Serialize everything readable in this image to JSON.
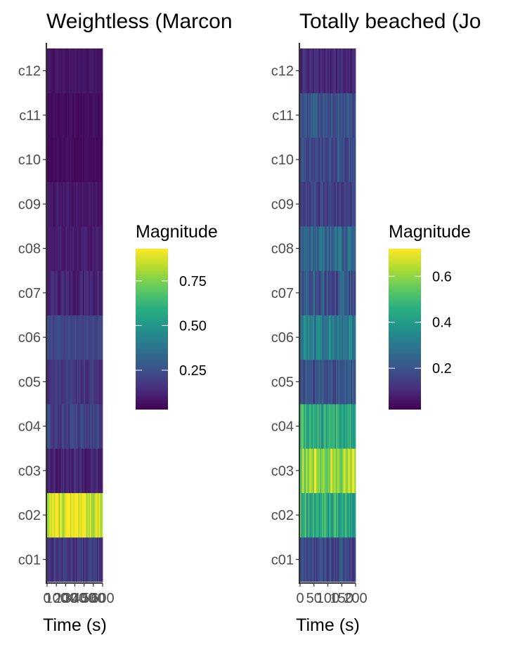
{
  "chart_data": [
    {
      "type": "heatmap",
      "title": "Weightless (Marcon",
      "xlabel": "Time (s)",
      "ylabel": "",
      "x_ticks": [
        "0",
        "100",
        "200",
        "300",
        "400",
        "500",
        "600"
      ],
      "xlim": [
        0,
        600
      ],
      "categories": [
        "c01",
        "c02",
        "c03",
        "c04",
        "c05",
        "c06",
        "c07",
        "c08",
        "c09",
        "c10",
        "c11",
        "c12"
      ],
      "value_range": [
        0.03,
        0.93
      ],
      "band_means": [
        0.18,
        0.88,
        0.12,
        0.2,
        0.17,
        0.22,
        0.12,
        0.1,
        0.09,
        0.06,
        0.06,
        0.08
      ],
      "band_spread": [
        0.07,
        0.12,
        0.06,
        0.06,
        0.05,
        0.03,
        0.05,
        0.03,
        0.03,
        0.02,
        0.02,
        0.02
      ],
      "legend": {
        "title": "Magnitude",
        "breaks": [
          "0.25",
          "0.50",
          "0.75"
        ],
        "break_values": [
          0.25,
          0.5,
          0.75
        ],
        "position": "right"
      },
      "colorscale": "viridis"
    },
    {
      "type": "heatmap",
      "title": "Totally beached (Jo",
      "xlabel": "Time (s)",
      "ylabel": "",
      "x_ticks": [
        "0",
        "50",
        "100",
        "150",
        "200"
      ],
      "xlim": [
        0,
        200
      ],
      "categories": [
        "c01",
        "c02",
        "c03",
        "c04",
        "c05",
        "c06",
        "c07",
        "c08",
        "c09",
        "c10",
        "c11",
        "c12"
      ],
      "value_range": [
        0.02,
        0.72
      ],
      "band_means": [
        0.17,
        0.45,
        0.62,
        0.45,
        0.2,
        0.32,
        0.2,
        0.25,
        0.15,
        0.18,
        0.2,
        0.1
      ],
      "band_spread": [
        0.07,
        0.12,
        0.1,
        0.1,
        0.07,
        0.09,
        0.1,
        0.08,
        0.06,
        0.06,
        0.06,
        0.04
      ],
      "legend": {
        "title": "Magnitude",
        "breaks": [
          "0.2",
          "0.4",
          "0.6"
        ],
        "break_values": [
          0.2,
          0.4,
          0.6
        ],
        "position": "right"
      },
      "colorscale": "viridis"
    }
  ]
}
